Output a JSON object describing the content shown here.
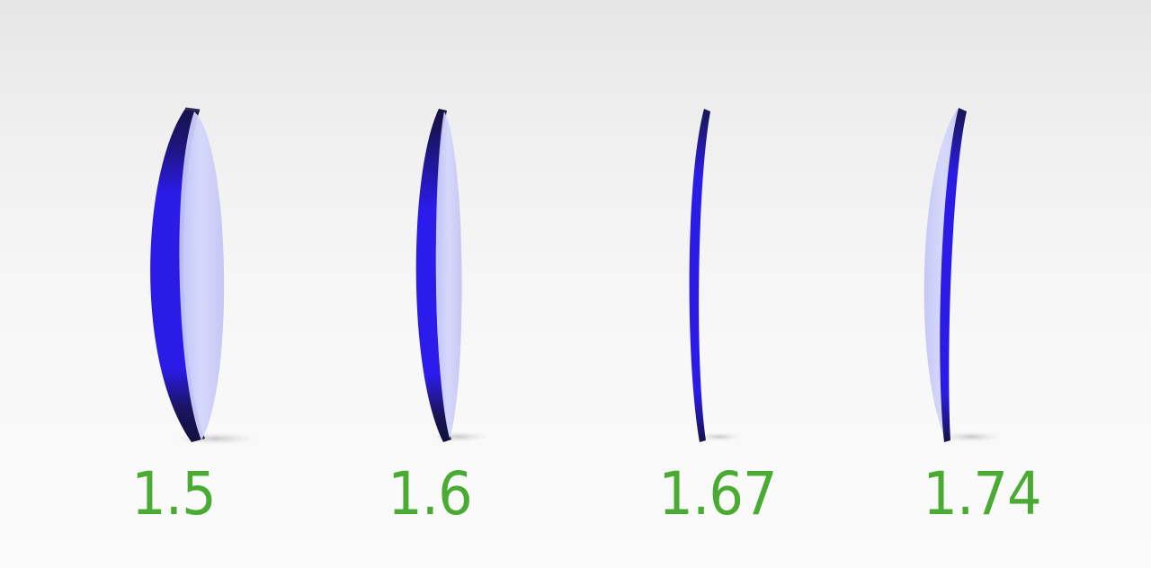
{
  "colors": {
    "label_green": "#4aab33",
    "lens_blue": "#2318e0",
    "lens_dark": "#151040",
    "lens_face": "#cfd2fb",
    "background": "#f4f4f4"
  },
  "lenses": [
    {
      "index_label": "1.5",
      "relative_thickness": 1.0
    },
    {
      "index_label": "1.6",
      "relative_thickness": 0.55
    },
    {
      "index_label": "1.67",
      "relative_thickness": 0.2
    },
    {
      "index_label": "1.74",
      "relative_thickness": 0.5
    }
  ]
}
